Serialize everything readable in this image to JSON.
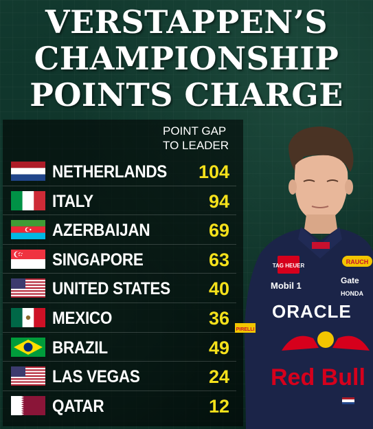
{
  "title": {
    "line1": "VERSTAPPEN’S",
    "line2": "CHAMPIONSHIP",
    "line3": "POINTS CHARGE"
  },
  "header": {
    "line1": "POINT GAP",
    "line2": "TO LEADER"
  },
  "rows": [
    {
      "country": "NETHERLANDS",
      "points": "104",
      "flag": "netherlands-flag-icon"
    },
    {
      "country": "ITALY",
      "points": "94",
      "flag": "italy-flag-icon"
    },
    {
      "country": "AZERBAIJAN",
      "points": "69",
      "flag": "azerbaijan-flag-icon"
    },
    {
      "country": "SINGAPORE",
      "points": "63",
      "flag": "singapore-flag-icon"
    },
    {
      "country": "UNITED STATES",
      "points": "40",
      "flag": "usa-flag-icon"
    },
    {
      "country": "MEXICO",
      "points": "36",
      "flag": "mexico-flag-icon"
    },
    {
      "country": "BRAZIL",
      "points": "49",
      "flag": "brazil-flag-icon"
    },
    {
      "country": "LAS VEGAS",
      "points": "24",
      "flag": "usa-flag-icon"
    },
    {
      "country": "QATAR",
      "points": "12",
      "flag": "qatar-flag-icon"
    }
  ],
  "driver_photo": {
    "sponsors": {
      "tag": "TAG HEUER",
      "rauch": "RAUCH",
      "mobil": "Mobil 1",
      "gate": "Gate",
      "honda": "HONDA",
      "oracle": "ORACLE",
      "redbull": "Red Bull",
      "pirelli": "PIRELLI"
    }
  },
  "colors": {
    "background": "#0c2e26",
    "title": "#ffffff",
    "points": "#f5e11b",
    "panel": "#000000"
  }
}
